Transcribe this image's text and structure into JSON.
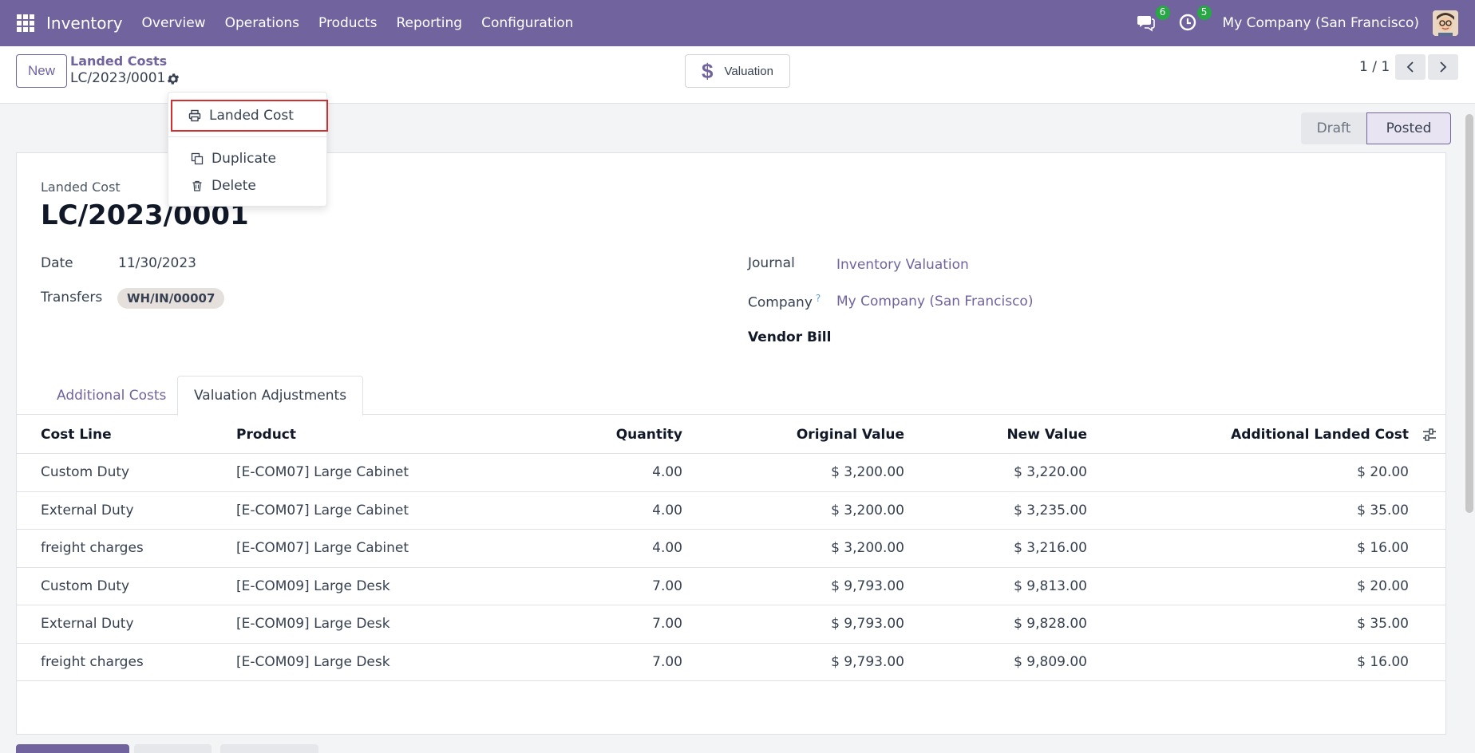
{
  "navbar": {
    "app_name": "Inventory",
    "menu": [
      "Overview",
      "Operations",
      "Products",
      "Reporting",
      "Configuration"
    ],
    "messages_count": "6",
    "activities_count": "5",
    "company": "My Company (San Francisco)"
  },
  "control": {
    "new_label": "New",
    "breadcrumb_parent": "Landed Costs",
    "breadcrumb_current": "LC/2023/0001",
    "valuation_label": "Valuation",
    "pager": "1 / 1"
  },
  "dropdown": {
    "items": [
      "Landed Cost",
      "Duplicate",
      "Delete"
    ]
  },
  "status": {
    "draft": "Draft",
    "posted": "Posted"
  },
  "form": {
    "record_label": "Landed Cost",
    "title": "LC/2023/0001",
    "date_label": "Date",
    "date_value": "11/30/2023",
    "transfers_label": "Transfers",
    "transfers_tag": "WH/IN/00007",
    "journal_label": "Journal",
    "journal_value": "Inventory Valuation",
    "company_label": "Company",
    "company_value": "My Company (San Francisco)",
    "vendor_bill_label": "Vendor Bill"
  },
  "tabs": [
    "Additional Costs",
    "Valuation Adjustments"
  ],
  "table": {
    "headers": [
      "Cost Line",
      "Product",
      "Quantity",
      "Original Value",
      "New Value",
      "Additional Landed Cost"
    ],
    "rows": [
      [
        "Custom Duty",
        "[E-COM07] Large Cabinet",
        "4.00",
        "$ 3,200.00",
        "$ 3,220.00",
        "$ 20.00"
      ],
      [
        "External Duty",
        "[E-COM07] Large Cabinet",
        "4.00",
        "$ 3,200.00",
        "$ 3,235.00",
        "$ 35.00"
      ],
      [
        "freight charges",
        "[E-COM07] Large Cabinet",
        "4.00",
        "$ 3,200.00",
        "$ 3,216.00",
        "$ 16.00"
      ],
      [
        "Custom Duty",
        "[E-COM09] Large Desk",
        "7.00",
        "$ 9,793.00",
        "$ 9,813.00",
        "$ 20.00"
      ],
      [
        "External Duty",
        "[E-COM09] Large Desk",
        "7.00",
        "$ 9,793.00",
        "$ 9,828.00",
        "$ 35.00"
      ],
      [
        "freight charges",
        "[E-COM09] Large Desk",
        "7.00",
        "$ 9,793.00",
        "$ 9,809.00",
        "$ 16.00"
      ]
    ]
  },
  "colors": {
    "brand": "#71639e",
    "highlight": "#d32f2f",
    "badge": "#28a745"
  }
}
